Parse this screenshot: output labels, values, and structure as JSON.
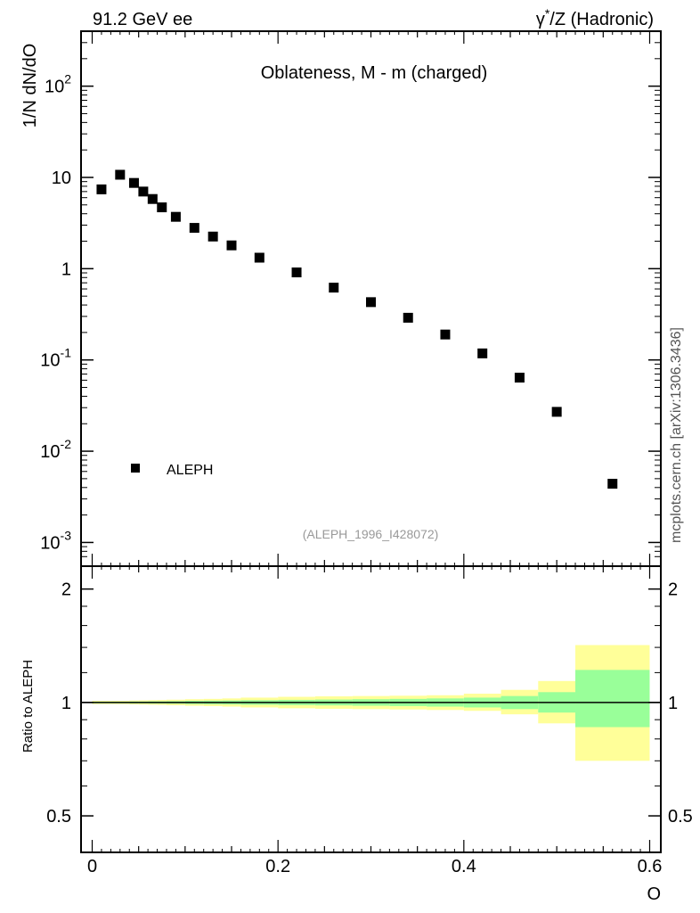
{
  "header": {
    "left": "91.2 GeV ee",
    "right_prefix": "γ",
    "right_sup": "*",
    "right_suffix": "/Z (Hadronic)"
  },
  "side_label": "mcplots.cern.ch [arXiv:1306.3436]",
  "chart_data": [
    {
      "type": "scatter",
      "title": "Oblateness, M - m (charged)",
      "ylabel": "1/N  dN/dO",
      "xlim": [
        -0.012,
        0.612
      ],
      "ylim": [
        0.00055,
        400
      ],
      "yscale": "log",
      "yticks": [
        {
          "label": "10",
          "sup": "-3"
        },
        {
          "label": "10",
          "sup": "-2"
        },
        {
          "label": "10",
          "sup": "-1"
        },
        {
          "label": "1",
          "sup": ""
        },
        {
          "label": "10",
          "sup": ""
        },
        {
          "label": "10",
          "sup": "2"
        }
      ],
      "series": [
        {
          "name": "ALEPH",
          "marker": "square",
          "color": "#000000",
          "x": [
            0.01,
            0.03,
            0.045,
            0.055,
            0.065,
            0.075,
            0.09,
            0.11,
            0.13,
            0.15,
            0.18,
            0.22,
            0.26,
            0.3,
            0.34,
            0.38,
            0.42,
            0.46,
            0.5,
            0.56
          ],
          "y": [
            7.4,
            10.7,
            8.7,
            7.0,
            5.8,
            4.7,
            3.7,
            2.8,
            2.25,
            1.8,
            1.32,
            0.91,
            0.62,
            0.43,
            0.29,
            0.19,
            0.118,
            0.064,
            0.027,
            0.0044
          ]
        }
      ],
      "legend": {
        "position": "bottom-left"
      },
      "source_note": "(ALEPH_1996_I428072)"
    },
    {
      "type": "area",
      "ylabel": "Ratio to ALEPH",
      "xlabel": "O",
      "xlim": [
        -0.012,
        0.612
      ],
      "ylim": [
        0.4,
        2.3
      ],
      "yscale": "log",
      "xticks": [
        "0",
        "0.2",
        "0.4",
        "0.6"
      ],
      "yticks": [
        "0.5",
        "1",
        "2"
      ],
      "reference_line": 1,
      "bands": {
        "colors": {
          "outer": "#ffff99",
          "inner": "#99ff99"
        },
        "edges": [
          0.0,
          0.02,
          0.04,
          0.05,
          0.06,
          0.07,
          0.08,
          0.1,
          0.12,
          0.14,
          0.16,
          0.2,
          0.24,
          0.28,
          0.32,
          0.36,
          0.4,
          0.44,
          0.48,
          0.52,
          0.6
        ],
        "outer_lo": [
          0.99,
          0.99,
          0.988,
          0.987,
          0.986,
          0.985,
          0.983,
          0.98,
          0.978,
          0.975,
          0.97,
          0.965,
          0.962,
          0.96,
          0.958,
          0.955,
          0.95,
          0.93,
          0.88,
          0.7
        ],
        "outer_hi": [
          1.01,
          1.01,
          1.012,
          1.013,
          1.014,
          1.015,
          1.017,
          1.02,
          1.022,
          1.025,
          1.03,
          1.035,
          1.038,
          1.04,
          1.042,
          1.045,
          1.055,
          1.08,
          1.14,
          1.42
        ],
        "inner_lo": [
          0.995,
          0.995,
          0.994,
          0.994,
          0.993,
          0.993,
          0.992,
          0.99,
          0.989,
          0.988,
          0.986,
          0.984,
          0.982,
          0.98,
          0.978,
          0.975,
          0.97,
          0.96,
          0.94,
          0.86
        ],
        "inner_hi": [
          1.005,
          1.005,
          1.006,
          1.006,
          1.007,
          1.007,
          1.008,
          1.01,
          1.011,
          1.012,
          1.014,
          1.016,
          1.018,
          1.02,
          1.022,
          1.025,
          1.03,
          1.04,
          1.065,
          1.22
        ]
      }
    }
  ]
}
